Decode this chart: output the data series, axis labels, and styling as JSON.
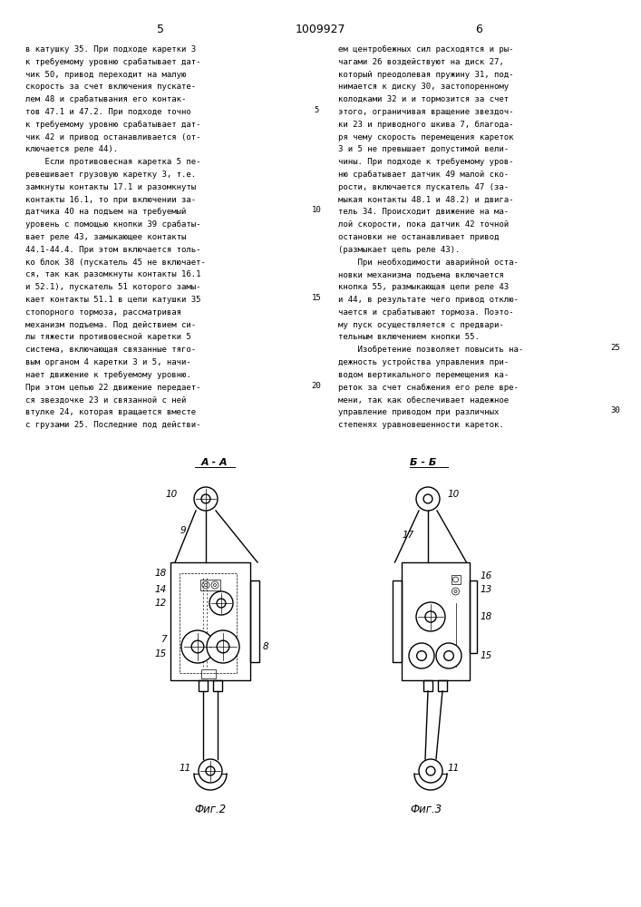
{
  "page_number_left": "5",
  "page_number_center": "1009927",
  "page_number_right": "6",
  "col1_text": [
    "в катушку 35. При подходе каретки 3",
    "к требуемому уровню срабатывает дат-",
    "чик 50, привод переходит на малую",
    "скорость за счет включения пускате-",
    "лем 48 и срабатывания его контак-",
    "тов 47.1 и 47.2. При подходе точно",
    "к требуемому уровню срабатывает дат-",
    "чик 42 и привод останавливается (от-",
    "ключается реле 44).",
    "    Если противовесная каретка 5 пе-",
    "ревешивает грузовую каретку 3, т.е.",
    "замкнуты контакты 17.1 и разомкнуты",
    "контакты 16.1, то при включении за-",
    "датчика 40 на подъем на требуемый",
    "уровень с помощью кнопки 39 срабаты-",
    "вает реле 43, замыкающее контакты",
    "44.1-44.4. При этом включается толь-",
    "ко блок 38 (пускатель 45 не включает-",
    "ся, так как разомкнуты контакты 16.1",
    "и 52.1), пускатель 51 которого замы-",
    "кает контакты 51.1 в цепи катушки 35",
    "стопорного тормоза, рассматривая",
    "механизм подъема. Под действием си-",
    "лы тяжести противовесной каретки 5",
    "система, включающая связанные тяго-",
    "вым органом 4 каретки 3 и 5, начи-",
    "нает движение к требуемому уровню.",
    "При этом цепью 22 движение передает-",
    "ся звездочке 23 и связанной с ней",
    "втулке 24, которая вращается вместе",
    "с грузами 25. Последние под действи-"
  ],
  "col1_line_numbers": [
    null,
    null,
    null,
    null,
    null,
    "5",
    null,
    null,
    null,
    null,
    null,
    null,
    null,
    "10",
    null,
    null,
    null,
    null,
    null,
    null,
    "15",
    null,
    null,
    null,
    null,
    null,
    null,
    "20",
    null,
    null,
    null
  ],
  "col2_text": [
    "ем центробежных сил расходятся и ры-",
    "чагами 26 воздействуют на диск 27,",
    "который преодолевая пружину 31, под-",
    "нимается к диску 30, застопоренному",
    "колодками 32 и и тормозится за счет",
    "этого, ограничивая вращение звездоч-",
    "ки 23 и приводного шкива 7, благода-",
    "ря чему скорость перемещения кареток",
    "3 и 5 не превышает допустимой вели-",
    "чины. При подходе к требуемому уров-",
    "ню срабатывает датчик 49 малой ско-",
    "рости, включается пускатель 47 (за-",
    "мыкая контакты 48.1 и 48.2) и двига-",
    "тель 34. Происходит движение на ма-",
    "лой скорости, пока датчик 42 точной",
    "остановки не останавливает привод",
    "(размыкает цепь реле 43).",
    "    При необходимости аварийной оста-",
    "новки механизма подъема включается",
    "кнопка 55, размыкающая цепи реле 43",
    "и 44, в результате чего привод отклю-",
    "чается и срабатывают тормоза. Поэто-",
    "му пуск осуществляется с предвари-",
    "тельным включением кнопки 55.",
    "    Изобретение позволяет повысить на-",
    "дежность устройства управления при-",
    "водом вертикального перемещения ка-",
    "реток за счет снабжения его реле вре-",
    "мени, так как обеспечивает надежное",
    "управление приводом при различных",
    "степенях уравновешенности кареток."
  ],
  "col2_line_numbers": [
    null,
    null,
    null,
    null,
    null,
    null,
    null,
    null,
    null,
    null,
    null,
    null,
    null,
    null,
    null,
    null,
    null,
    null,
    null,
    null,
    null,
    null,
    null,
    null,
    "25",
    null,
    null,
    null,
    null,
    "30",
    null
  ],
  "fig2_label": "Фиг.2",
  "fig3_label": "Фиг.3",
  "section_aa": "А - А",
  "section_bb": "Б - Б",
  "background": "#ffffff"
}
